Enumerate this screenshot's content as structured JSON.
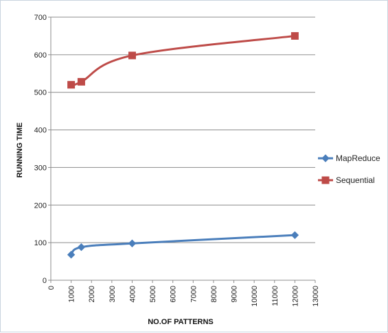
{
  "chart_data": {
    "type": "line",
    "xlabel": "NO.OF PATTERNS",
    "ylabel": "RUNNING TIME",
    "xlim": [
      0,
      13000
    ],
    "ylim": [
      0,
      700
    ],
    "xticks": [
      0,
      1000,
      2000,
      3000,
      4000,
      5000,
      6000,
      7000,
      8000,
      9000,
      10000,
      11000,
      12000,
      13000
    ],
    "yticks": [
      0,
      100,
      200,
      300,
      400,
      500,
      600,
      700
    ],
    "grid": "horizontal",
    "legend_position": "right",
    "smooth": true,
    "series": [
      {
        "name": "MapReduce",
        "color": "#4a7ebb",
        "marker": "diamond",
        "x": [
          1000,
          1500,
          4000,
          12000
        ],
        "y": [
          68,
          88,
          98,
          120
        ]
      },
      {
        "name": "Sequential",
        "color": "#be4b48",
        "marker": "square",
        "x": [
          1000,
          1500,
          4000,
          12000
        ],
        "y": [
          520,
          528,
          598,
          650
        ]
      }
    ]
  }
}
